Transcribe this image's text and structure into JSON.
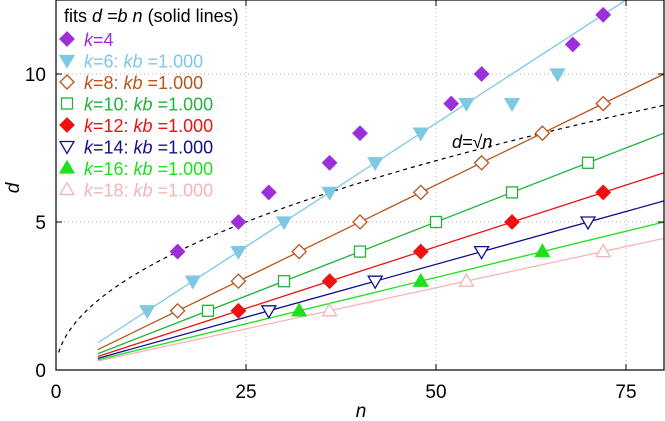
{
  "chart_data": {
    "type": "scatter",
    "xlabel": "n",
    "ylabel": "d",
    "xlim": [
      0,
      80
    ],
    "ylim": [
      0,
      12.5
    ],
    "xticks": [
      0,
      25,
      50,
      75
    ],
    "yticks": [
      0,
      5,
      10
    ],
    "grid": true,
    "legend_position": "top-left",
    "legend_title": {
      "prefix": "fits ",
      "formula": "d =b n",
      "suffix": " (solid lines)"
    },
    "reference_curve": {
      "label_lhs": "d=",
      "label_rad": "√",
      "label_var": "n",
      "label_at": {
        "x": 48,
        "y": 7.4
      },
      "style": "dashed",
      "color": "#000000"
    },
    "series": [
      {
        "name": "k=4",
        "color": "#9b30d9",
        "marker": "diamond-filled",
        "x": [
          16,
          24,
          28,
          36,
          40,
          52,
          56,
          68,
          72
        ],
        "y": [
          4,
          5,
          6,
          7,
          8,
          9,
          10,
          11,
          12
        ]
      },
      {
        "name": "k=6: kb =1.000",
        "color": "#7ec8e3",
        "marker": "triangle-down-filled",
        "slope": 0.1667,
        "x": [
          12,
          18,
          24,
          30,
          36,
          42,
          48,
          54,
          60,
          66
        ],
        "y": [
          2,
          3,
          4,
          5,
          6,
          7,
          8,
          9,
          9,
          10
        ]
      },
      {
        "name": "k=8: kb =1.000",
        "color": "#b8541c",
        "marker": "diamond-open",
        "slope": 0.125,
        "x": [
          16,
          24,
          32,
          40,
          48,
          56,
          64,
          72
        ],
        "y": [
          2,
          3,
          4,
          5,
          6,
          7,
          8,
          9
        ]
      },
      {
        "name": "k=10: kb =1.000",
        "color": "#22b33a",
        "marker": "square-open",
        "slope": 0.1,
        "x": [
          20,
          30,
          40,
          50,
          60,
          70
        ],
        "y": [
          2,
          3,
          4,
          5,
          6,
          7
        ]
      },
      {
        "name": "k=12: kb =1.000",
        "color": "#ee1111",
        "marker": "diamond-filled",
        "slope": 0.0833,
        "x": [
          24,
          36,
          48,
          60,
          72
        ],
        "y": [
          2,
          3,
          4,
          5,
          6
        ]
      },
      {
        "name": "k=14: kb =1.000",
        "color": "#10108a",
        "marker": "triangle-down-open",
        "slope": 0.0714,
        "x": [
          28,
          42,
          56,
          70
        ],
        "y": [
          2,
          3,
          4,
          5
        ]
      },
      {
        "name": "k=16: kb =1.000",
        "color": "#1ee01e",
        "marker": "triangle-up-filled",
        "slope": 0.0625,
        "x": [
          32,
          48,
          64
        ],
        "y": [
          2,
          3,
          4
        ]
      },
      {
        "name": "k=18: kb =1.000",
        "color": "#f5b5b5",
        "marker": "triangle-up-open",
        "slope": 0.0556,
        "x": [
          36,
          54,
          72
        ],
        "y": [
          2,
          3,
          4
        ]
      }
    ]
  }
}
